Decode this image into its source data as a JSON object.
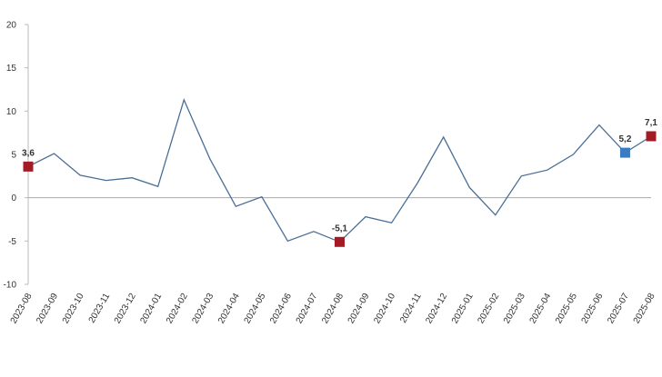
{
  "chart_data": {
    "type": "line",
    "categories": [
      "2023-08",
      "2023-09",
      "2023-10",
      "2023-11",
      "2023-12",
      "2024-01",
      "2024-02",
      "2024-03",
      "2024-04",
      "2024-05",
      "2024-06",
      "2024-07",
      "2024-08",
      "2024-09",
      "2024-10",
      "2024-11",
      "2024-12",
      "2025-01",
      "2025-02",
      "2025-03",
      "2025-04",
      "2025-05",
      "2025-06",
      "2025-07",
      "2025-08"
    ],
    "values": [
      3.6,
      5.1,
      2.6,
      2.0,
      2.3,
      1.3,
      11.3,
      4.5,
      -1.0,
      0.1,
      -5.0,
      -3.9,
      -5.1,
      -2.2,
      -2.9,
      1.7,
      7.0,
      1.2,
      -2.0,
      2.5,
      3.2,
      5.0,
      8.4,
      5.2,
      7.1
    ],
    "value_labels": [
      "3,6",
      null,
      null,
      null,
      null,
      null,
      null,
      null,
      null,
      null,
      null,
      null,
      "-5,1",
      null,
      null,
      null,
      null,
      null,
      null,
      null,
      null,
      null,
      null,
      "5,2",
      "7,1"
    ],
    "color": "#4a6f96",
    "marker_colors": [
      "#a31b25",
      null,
      null,
      null,
      null,
      null,
      null,
      null,
      null,
      null,
      null,
      null,
      "#a31b25",
      null,
      null,
      null,
      null,
      null,
      null,
      null,
      null,
      null,
      null,
      "#3a7cc3",
      "#a31b25"
    ],
    "ylim": [
      -10,
      20
    ],
    "yticks": [
      -10,
      -5,
      0,
      5,
      10,
      15,
      20
    ]
  }
}
